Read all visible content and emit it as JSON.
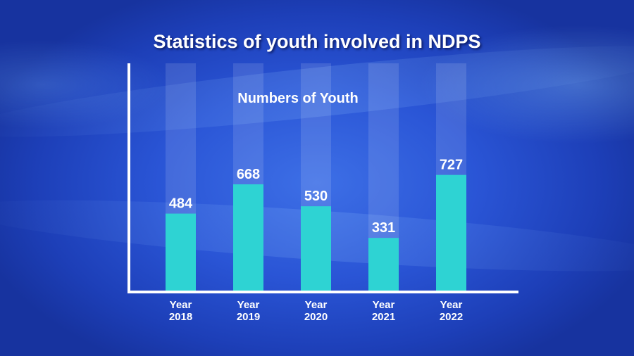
{
  "chart_data": {
    "type": "bar",
    "title": "Statistics of youth involved in NDPS",
    "series_label": "Numbers of Youth",
    "categories": [
      {
        "line1": "Year",
        "line2": "2018"
      },
      {
        "line1": "Year",
        "line2": "2019"
      },
      {
        "line1": "Year",
        "line2": "2020"
      },
      {
        "line1": "Year",
        "line2": "2021"
      },
      {
        "line1": "Year",
        "line2": "2022"
      }
    ],
    "values": [
      484,
      668,
      530,
      331,
      727
    ],
    "ylim": [
      0,
      1000
    ],
    "bar_color": "#2ed3d3",
    "axis_color": "#ffffff",
    "grid": false
  }
}
